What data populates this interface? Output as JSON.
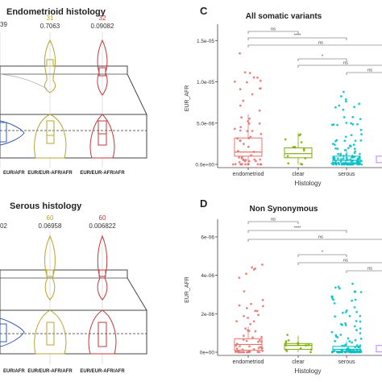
{
  "left_top": {
    "title": "Endometrioid histology",
    "counts": [
      "31",
      "32"
    ],
    "count_partial": "39",
    "pvalues": [
      "0.7063",
      "0.09082"
    ],
    "xlabels": [
      "EUR/AFR",
      "EUR/EUR-AFR/AFR",
      "EUR/EUR-AFR/AFR"
    ]
  },
  "left_bottom": {
    "title": "Serous histology",
    "counts": [
      "60",
      "60"
    ],
    "value_partial": "02",
    "pvalues": [
      "0.06958",
      "0.006822"
    ],
    "xlabels": [
      "EUR/AFR",
      "EUR/EUR-AFR/AFR",
      "EUR/EUR-AFR/AFR"
    ]
  },
  "chart_data": [
    {
      "panel": "C",
      "type": "scatter",
      "title": "All somatic variants",
      "xlabel": "Histology",
      "ylabel": "EUR_AFR",
      "categories": [
        "endometriod",
        "clear",
        "serous"
      ],
      "yticks": [
        "0.0e+00",
        "5.0e-06",
        "1.0e-05",
        "1.5e-05"
      ],
      "ylim": [
        0,
        1.6e-05
      ],
      "comparisons": [
        "ns",
        "****",
        "ns",
        "*",
        "ns",
        "ns"
      ],
      "box": [
        {
          "category": "endometriod",
          "q1": 1e-06,
          "median": 1.5e-06,
          "q3": 3.2e-06,
          "color": "#E8726C"
        },
        {
          "category": "clear",
          "q1": 8e-07,
          "median": 1.3e-06,
          "q3": 2e-06,
          "color": "#7CAE00"
        },
        {
          "category": "serous",
          "q1": 2e-07,
          "median": 5e-07,
          "q3": 1e-06,
          "color": "#00BFC4"
        }
      ]
    },
    {
      "panel": "D",
      "type": "scatter",
      "title": "Non Synonymous",
      "xlabel": "Histology",
      "ylabel": "EUR_AFR",
      "categories": [
        "endometriod",
        "clear",
        "serous"
      ],
      "yticks": [
        "0e+00",
        "2e-06",
        "4e-06",
        "6e-06"
      ],
      "ylim": [
        0,
        6.5e-06
      ],
      "comparisons": [
        "ns",
        "****",
        "ns",
        "*",
        "ns",
        "ns"
      ],
      "box": [
        {
          "category": "endometriod",
          "q1": 1e-07,
          "median": 4e-07,
          "q3": 7e-07,
          "color": "#E8726C"
        },
        {
          "category": "clear",
          "q1": 1.5e-07,
          "median": 3.5e-07,
          "q3": 4.5e-07,
          "color": "#7CAE00"
        },
        {
          "category": "serous",
          "q1": 5e-08,
          "median": 1.5e-07,
          "q3": 3e-07,
          "color": "#00BFC4"
        }
      ]
    }
  ],
  "panel_labels": [
    "C",
    "D"
  ]
}
